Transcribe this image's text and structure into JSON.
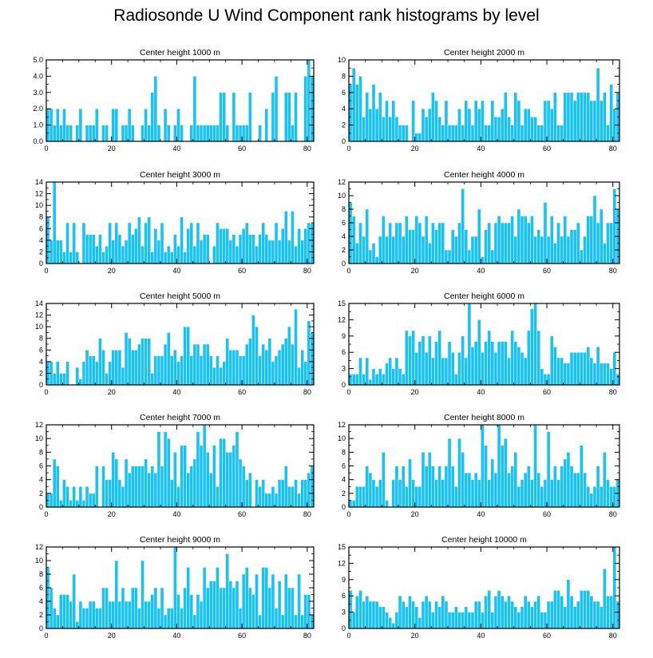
{
  "figure_title": "Radiosonde U Wind Component rank histograms by level",
  "chart_data": [
    {
      "type": "bar",
      "title": "Center height 1000 m",
      "xlim": [
        0,
        82
      ],
      "ylim": [
        0,
        5
      ],
      "xticks": [
        0,
        20,
        40,
        60,
        80
      ],
      "yticks": [
        0,
        1,
        2,
        3,
        4,
        5
      ],
      "ytick_labels": [
        "0.0",
        "1.0",
        "2.0",
        "3.0",
        "4.0",
        "5.0"
      ],
      "values": [
        2,
        2,
        1,
        2,
        1,
        2,
        1,
        1,
        0,
        1,
        2,
        0,
        1,
        1,
        1,
        2,
        0,
        1,
        1,
        0,
        2,
        2,
        0,
        1,
        1,
        2,
        1,
        0,
        0,
        1,
        2,
        1,
        3,
        4,
        1,
        0,
        2,
        1,
        0,
        1,
        2,
        1,
        0,
        0,
        1,
        4,
        1,
        1,
        1,
        1,
        1,
        1,
        1,
        3,
        3,
        1,
        0,
        3,
        1,
        1,
        1,
        1,
        3,
        0,
        0,
        1,
        0,
        2,
        0,
        3,
        4,
        0,
        0,
        3,
        3,
        1,
        3,
        0,
        0,
        4,
        5,
        4
      ]
    },
    {
      "type": "bar",
      "title": "Center height 2000 m",
      "xlim": [
        0,
        82
      ],
      "ylim": [
        0,
        10
      ],
      "xticks": [
        0,
        20,
        40,
        60,
        80
      ],
      "yticks": [
        0,
        2,
        4,
        6,
        8,
        10
      ],
      "ytick_labels": [
        "0",
        "2",
        "4",
        "6",
        "8",
        "10"
      ],
      "values": [
        7,
        9,
        7,
        8,
        3,
        6,
        4,
        7,
        4,
        6,
        3,
        5,
        3,
        5,
        3,
        2,
        2,
        2,
        0,
        5,
        1,
        1,
        4,
        3,
        4,
        6,
        5,
        3,
        2,
        5,
        2,
        2,
        2,
        4,
        2,
        5,
        4,
        2,
        5,
        4,
        5,
        2,
        2,
        5,
        3,
        3,
        4,
        6,
        3,
        2,
        6,
        5,
        2,
        4,
        4,
        3,
        3,
        2,
        2,
        5,
        5,
        4,
        6,
        2,
        2,
        6,
        6,
        6,
        5,
        6,
        6,
        6,
        6,
        5,
        5,
        9,
        5,
        6,
        2,
        7,
        4,
        6
      ]
    },
    {
      "type": "bar",
      "title": "Center height 3000 m",
      "xlim": [
        0,
        82
      ],
      "ylim": [
        0,
        14
      ],
      "xticks": [
        0,
        20,
        40,
        60,
        80
      ],
      "yticks": [
        0,
        2,
        4,
        6,
        8,
        10,
        12,
        14
      ],
      "ytick_labels": [
        "0",
        "2",
        "4",
        "6",
        "8",
        "10",
        "12",
        "14"
      ],
      "values": [
        8,
        4,
        14,
        4,
        4,
        2,
        7,
        2,
        7,
        2,
        0,
        7,
        5,
        5,
        5,
        3,
        5,
        2,
        3,
        7,
        4,
        7,
        5,
        3,
        4,
        7,
        5,
        6,
        8,
        3,
        7,
        8,
        2,
        6,
        4,
        7,
        2,
        3,
        2,
        5,
        3,
        8,
        2,
        6,
        7,
        3,
        7,
        4,
        5,
        5,
        0,
        3,
        7,
        6,
        6,
        6,
        4,
        5,
        3,
        5,
        6,
        7,
        5,
        5,
        3,
        5,
        7,
        5,
        4,
        4,
        7,
        4,
        6,
        9,
        4,
        9,
        3,
        6,
        4,
        6,
        7,
        7
      ]
    },
    {
      "type": "bar",
      "title": "Center height 4000 m",
      "xlim": [
        0,
        82
      ],
      "ylim": [
        0,
        12
      ],
      "xticks": [
        0,
        20,
        40,
        60,
        80
      ],
      "yticks": [
        0,
        2,
        4,
        6,
        8,
        10,
        12
      ],
      "ytick_labels": [
        "0",
        "2",
        "4",
        "6",
        "8",
        "10",
        "12"
      ],
      "values": [
        9,
        7,
        3,
        6,
        4,
        8,
        2,
        3,
        1,
        4,
        7,
        4,
        6,
        4,
        6,
        6,
        4,
        7,
        5,
        5,
        7,
        6,
        4,
        7,
        3,
        6,
        5,
        6,
        6,
        2,
        2,
        5,
        4,
        6,
        11,
        5,
        2,
        4,
        4,
        8,
        1,
        5,
        6,
        2,
        6,
        7,
        6,
        6,
        6,
        7,
        4,
        8,
        7,
        7,
        6,
        7,
        4,
        5,
        4,
        9,
        4,
        7,
        3,
        6,
        4,
        7,
        4,
        5,
        5,
        6,
        2,
        4,
        7,
        7,
        10,
        6,
        8,
        3,
        6,
        6,
        11,
        8
      ]
    },
    {
      "type": "bar",
      "title": "Center height 5000 m",
      "xlim": [
        0,
        82
      ],
      "ylim": [
        0,
        14
      ],
      "xticks": [
        0,
        20,
        40,
        60,
        80
      ],
      "yticks": [
        0,
        2,
        4,
        6,
        8,
        10,
        12,
        14
      ],
      "ytick_labels": [
        "0",
        "2",
        "4",
        "6",
        "8",
        "10",
        "12",
        "14"
      ],
      "values": [
        4,
        4,
        2,
        4,
        2,
        2,
        4,
        0,
        0,
        3,
        1,
        4,
        6,
        5,
        5,
        4,
        8,
        6,
        2,
        4,
        6,
        6,
        6,
        3,
        9,
        8,
        6,
        6,
        7,
        8,
        8,
        8,
        2,
        5,
        5,
        5,
        7,
        9,
        5,
        6,
        4,
        5,
        10,
        10,
        5,
        7,
        7,
        5,
        7,
        7,
        5,
        3,
        5,
        3,
        4,
        8,
        6,
        6,
        6,
        5,
        5,
        7,
        8,
        12,
        10,
        5,
        7,
        6,
        8,
        4,
        5,
        6,
        7,
        8,
        10,
        7,
        13,
        3,
        6,
        4,
        11,
        9
      ]
    },
    {
      "type": "bar",
      "title": "Center height 6000 m",
      "xlim": [
        0,
        82
      ],
      "ylim": [
        0,
        15
      ],
      "xticks": [
        0,
        20,
        40,
        60,
        80
      ],
      "yticks": [
        0,
        3,
        6,
        9,
        12,
        15
      ],
      "ytick_labels": [
        "0",
        "3",
        "6",
        "9",
        "12",
        "15"
      ],
      "values": [
        2,
        2,
        2,
        5,
        2,
        5,
        1,
        3,
        2,
        3,
        2,
        4,
        5,
        3,
        5,
        3,
        2,
        10,
        9,
        10,
        6,
        8,
        9,
        6,
        9,
        5,
        8,
        10,
        5,
        5,
        8,
        6,
        2,
        6,
        9,
        5,
        15,
        7,
        8,
        12,
        6,
        8,
        10,
        8,
        6,
        8,
        8,
        8,
        5,
        10,
        8,
        7,
        6,
        5,
        10,
        14,
        15,
        10,
        3,
        2,
        2,
        9,
        7,
        5,
        5,
        4,
        4,
        6,
        6,
        6,
        6,
        6,
        7,
        5,
        4,
        7,
        4,
        4,
        4,
        3,
        6,
        2
      ]
    },
    {
      "type": "bar",
      "title": "Center height 7000 m",
      "xlim": [
        0,
        82
      ],
      "ylim": [
        0,
        12
      ],
      "xticks": [
        0,
        20,
        40,
        60,
        80
      ],
      "yticks": [
        0,
        2,
        4,
        6,
        8,
        10,
        12
      ],
      "ytick_labels": [
        "0",
        "2",
        "4",
        "6",
        "8",
        "10",
        "12"
      ],
      "values": [
        2,
        2,
        7,
        6,
        1,
        4,
        3,
        1,
        3,
        1,
        3,
        1,
        3,
        2,
        2,
        6,
        0,
        6,
        4,
        4,
        8,
        7,
        4,
        3,
        7,
        5,
        6,
        6,
        6,
        6,
        7,
        5,
        6,
        5,
        11,
        6,
        11,
        10,
        4,
        8,
        3,
        9,
        9,
        5,
        6,
        7,
        11,
        9,
        12,
        8,
        5,
        9,
        3,
        10,
        10,
        8,
        8,
        9,
        11,
        7,
        6,
        4,
        5,
        0,
        4,
        3,
        4,
        2,
        2,
        3,
        2,
        4,
        4,
        6,
        3,
        3,
        4,
        2,
        4,
        4,
        5,
        6
      ]
    },
    {
      "type": "bar",
      "title": "Center height 8000 m",
      "xlim": [
        0,
        82
      ],
      "ylim": [
        0,
        12
      ],
      "xticks": [
        0,
        20,
        40,
        60,
        80
      ],
      "yticks": [
        0,
        2,
        4,
        6,
        8,
        10,
        12
      ],
      "ytick_labels": [
        "0",
        "2",
        "4",
        "6",
        "8",
        "10",
        "12"
      ],
      "values": [
        1,
        1,
        3,
        3,
        3,
        6,
        5,
        4,
        3,
        4,
        8,
        1,
        0,
        4,
        6,
        4,
        6,
        3,
        7,
        4,
        3,
        3,
        8,
        6,
        8,
        6,
        4,
        6,
        4,
        6,
        10,
        6,
        3,
        10,
        8,
        5,
        5,
        4,
        5,
        4,
        12,
        9,
        4,
        7,
        5,
        12,
        9,
        10,
        5,
        6,
        8,
        3,
        4,
        5,
        6,
        4,
        12,
        5,
        3,
        4,
        11,
        4,
        6,
        4,
        6,
        7,
        8,
        6,
        5,
        5,
        9,
        5,
        3,
        2,
        3,
        6,
        3,
        8,
        4,
        3,
        3,
        4
      ]
    },
    {
      "type": "bar",
      "title": "Center height 9000 m",
      "xlim": [
        0,
        82
      ],
      "ylim": [
        0,
        12
      ],
      "xticks": [
        0,
        20,
        40,
        60,
        80
      ],
      "yticks": [
        0,
        2,
        4,
        6,
        8,
        10,
        12
      ],
      "ytick_labels": [
        "0",
        "2",
        "4",
        "6",
        "8",
        "10",
        "12"
      ],
      "values": [
        9,
        6,
        3,
        2,
        5,
        5,
        5,
        4,
        8,
        1,
        4,
        3,
        3,
        4,
        4,
        3,
        3,
        6,
        6,
        4,
        4,
        10,
        4,
        6,
        4,
        4,
        6,
        6,
        3,
        10,
        4,
        4,
        5,
        6,
        3,
        6,
        2,
        3,
        3,
        12,
        5,
        3,
        6,
        9,
        5,
        2,
        5,
        4,
        9,
        6,
        7,
        7,
        9,
        6,
        6,
        11,
        7,
        6,
        7,
        3,
        8,
        9,
        6,
        5,
        8,
        2,
        9,
        9,
        6,
        8,
        3,
        7,
        2,
        8,
        6,
        6,
        2,
        8,
        2,
        5,
        5,
        2
      ]
    },
    {
      "type": "bar",
      "title": "Center height 10000 m",
      "xlim": [
        0,
        82
      ],
      "ylim": [
        0,
        15
      ],
      "xticks": [
        0,
        20,
        40,
        60,
        80
      ],
      "yticks": [
        0,
        3,
        6,
        9,
        12,
        15
      ],
      "ytick_labels": [
        "0",
        "3",
        "6",
        "9",
        "12",
        "15"
      ],
      "values": [
        7,
        3,
        6,
        7,
        5,
        6,
        5,
        5,
        5,
        4,
        4,
        3,
        2,
        1,
        3,
        6,
        5,
        4,
        6,
        5,
        4,
        2,
        5,
        6,
        5,
        3,
        5,
        4,
        6,
        5,
        3,
        3,
        4,
        3,
        3,
        4,
        3,
        3,
        5,
        5,
        3,
        6,
        7,
        3,
        6,
        7,
        6,
        5,
        6,
        5,
        4,
        3,
        4,
        6,
        5,
        4,
        5,
        6,
        3,
        3,
        5,
        5,
        7,
        7,
        6,
        4,
        9,
        6,
        4,
        5,
        7,
        7,
        7,
        6,
        5,
        5,
        4,
        11,
        6,
        6,
        15,
        5
      ]
    }
  ]
}
